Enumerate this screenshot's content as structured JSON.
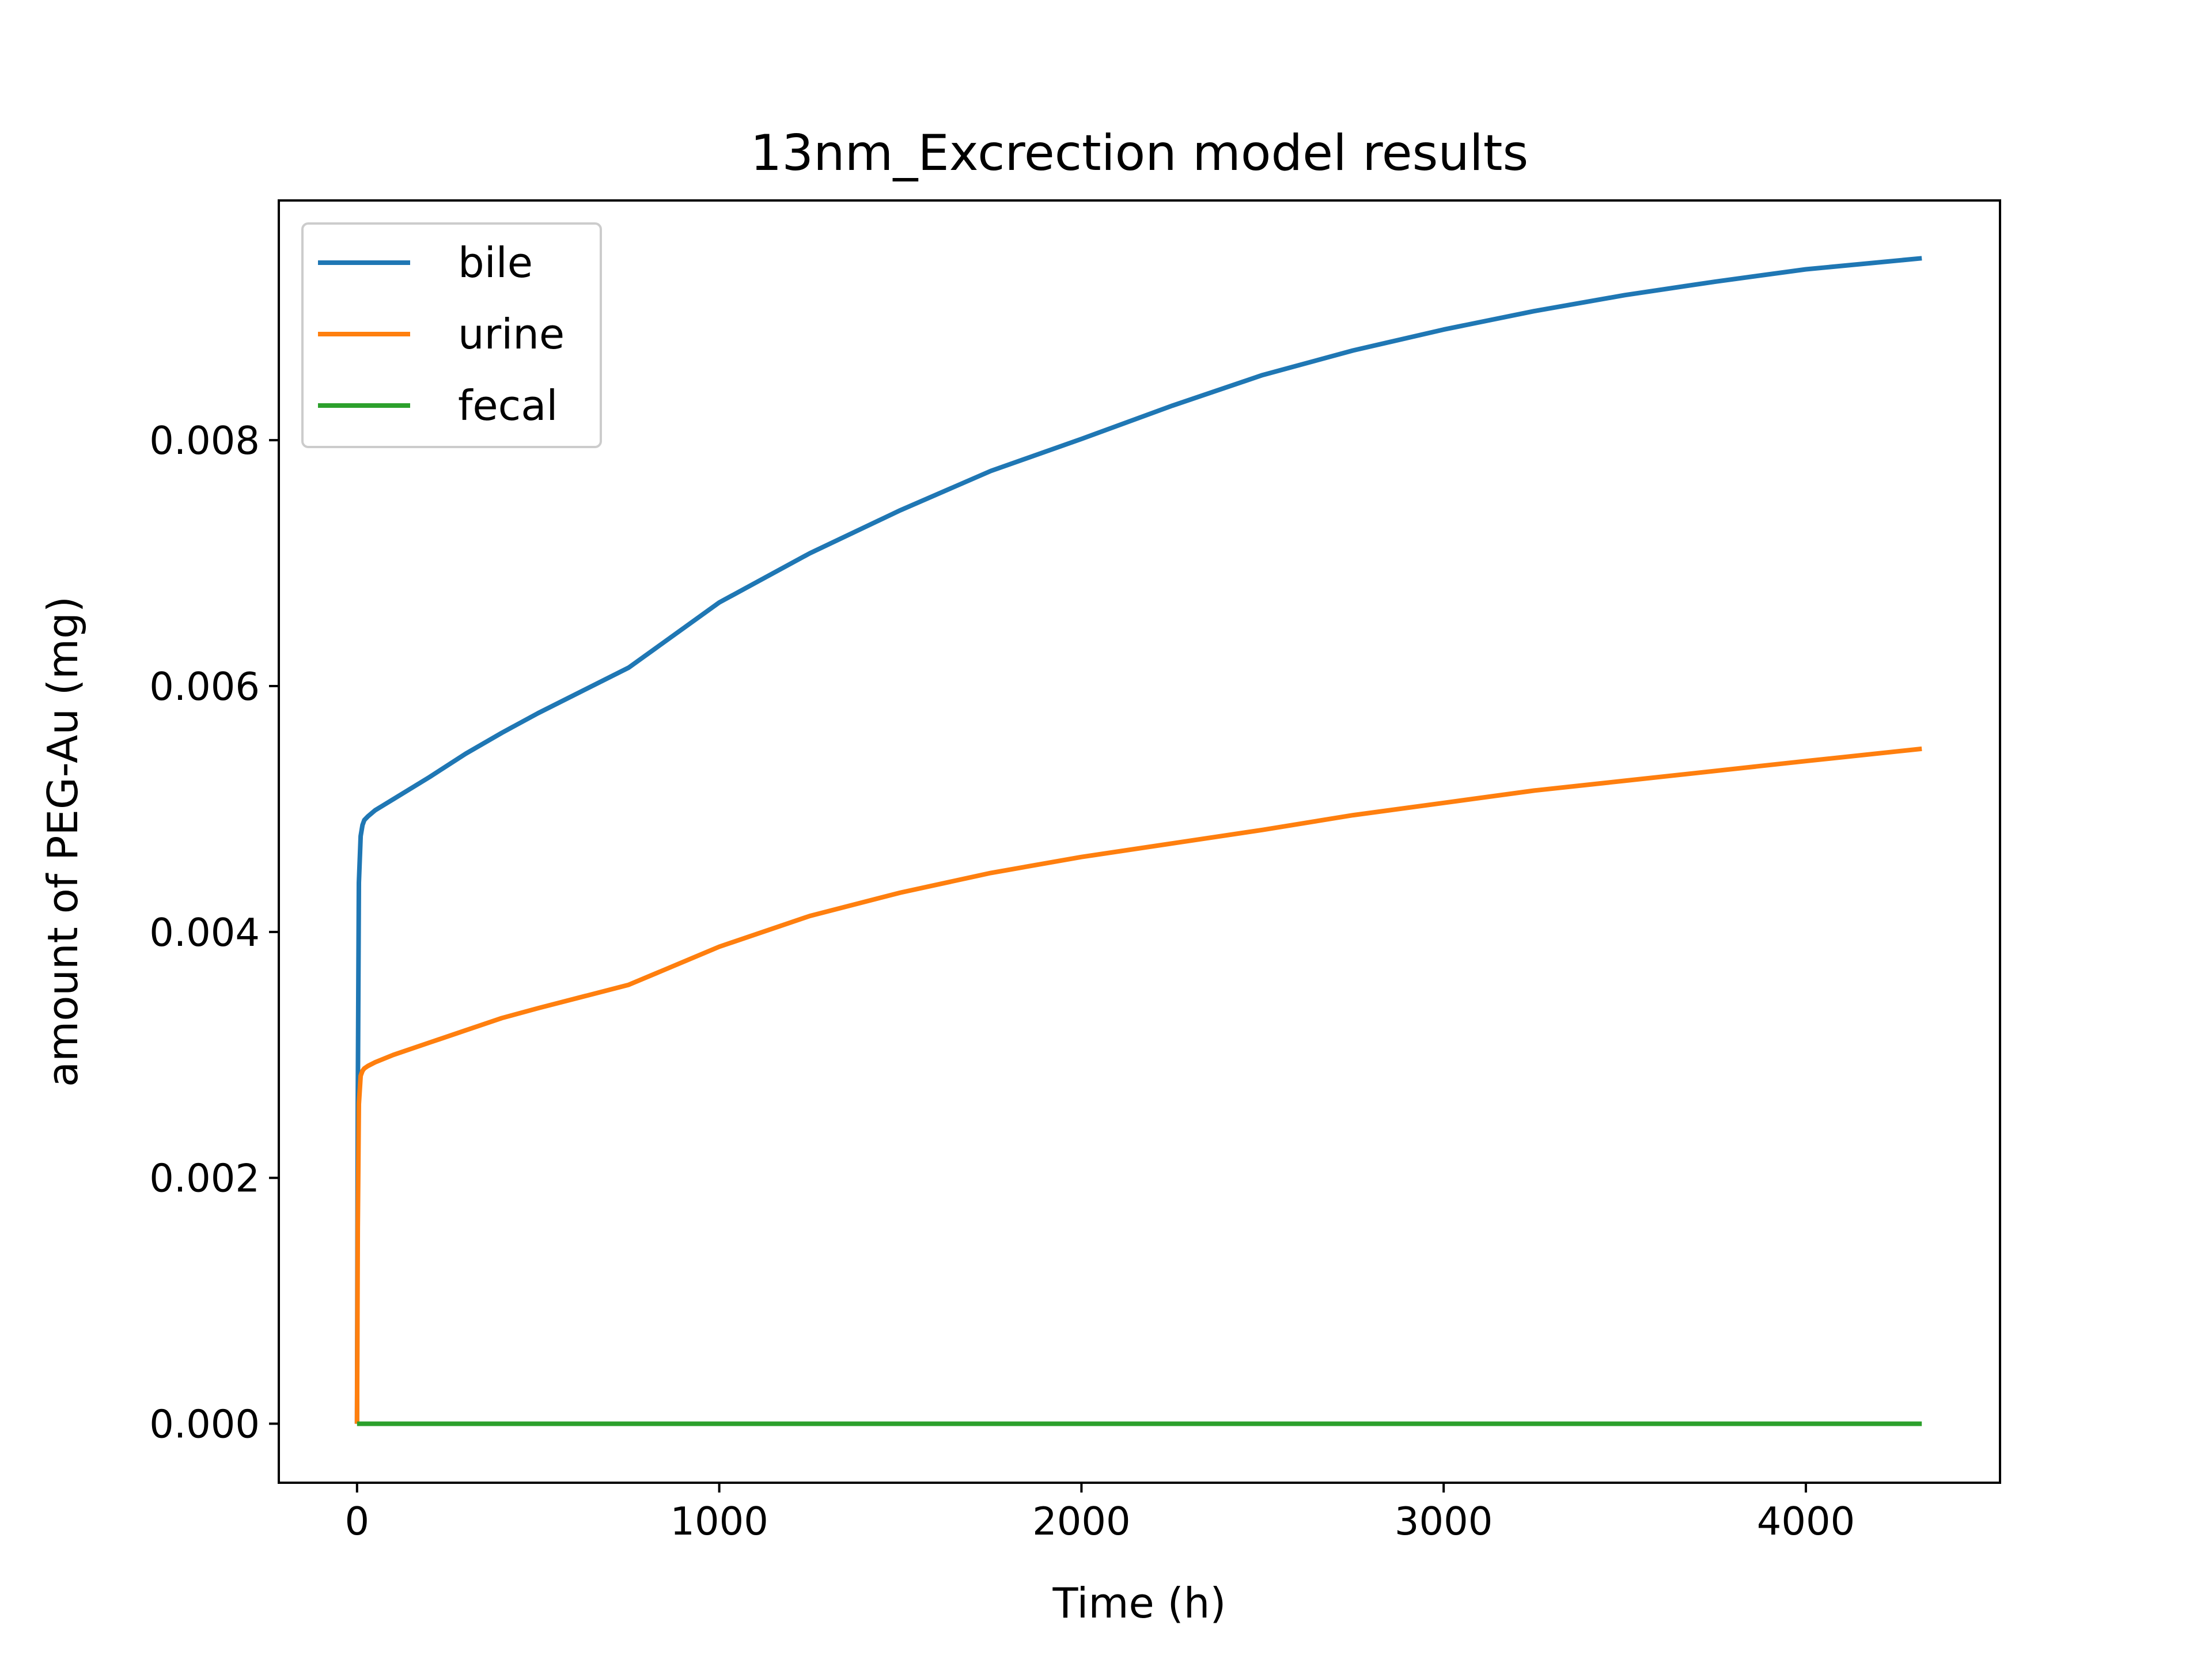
{
  "chart_data": {
    "type": "line",
    "title": "13nm_Excrection model results",
    "xlabel": "Time (h)",
    "ylabel": "amount of PEG-Au (mg)",
    "xlim": [
      -216,
      4536
    ],
    "ylim": [
      -0.00048,
      0.00995
    ],
    "xticks": [
      0,
      1000,
      2000,
      3000,
      4000
    ],
    "xtick_labels": [
      "0",
      "1000",
      "2000",
      "3000",
      "4000"
    ],
    "yticks": [
      0.0,
      0.002,
      0.004,
      0.006,
      0.008
    ],
    "ytick_labels": [
      "0.000",
      "0.002",
      "0.004",
      "0.006",
      "0.008"
    ],
    "grid": false,
    "legend_position": "top-left",
    "series": [
      {
        "name": "bile",
        "color": "#1f77b4",
        "x": [
          0,
          2,
          5,
          10,
          15,
          20,
          30,
          50,
          100,
          200,
          300,
          400,
          500,
          750,
          1000,
          1250,
          1500,
          1750,
          2000,
          2250,
          2500,
          2750,
          3000,
          3250,
          3500,
          3750,
          4000,
          4320
        ],
        "y": [
          0.0,
          0.0026,
          0.0044,
          0.00478,
          0.00487,
          0.00491,
          0.00494,
          0.00499,
          0.00508,
          0.00526,
          0.00545,
          0.00562,
          0.00578,
          0.00615,
          0.00668,
          0.00708,
          0.00743,
          0.00775,
          0.00801,
          0.00828,
          0.00853,
          0.00873,
          0.0089,
          0.00905,
          0.00918,
          0.00929,
          0.00939,
          0.00948
        ]
      },
      {
        "name": "urine",
        "color": "#ff7f0e",
        "x": [
          0,
          2,
          5,
          10,
          15,
          20,
          30,
          50,
          100,
          200,
          300,
          400,
          500,
          750,
          1000,
          1250,
          1500,
          1750,
          2000,
          2250,
          2500,
          2750,
          3000,
          3250,
          3500,
          3750,
          4000,
          4320
        ],
        "y": [
          0.0,
          0.0016,
          0.0026,
          0.00283,
          0.00287,
          0.00289,
          0.00291,
          0.00294,
          0.003,
          0.0031,
          0.0032,
          0.0033,
          0.00338,
          0.00357,
          0.00388,
          0.00413,
          0.00432,
          0.00448,
          0.00461,
          0.00472,
          0.00483,
          0.00495,
          0.00505,
          0.00515,
          0.00523,
          0.00531,
          0.00539,
          0.00549
        ]
      },
      {
        "name": "fecal",
        "color": "#2ca02c",
        "x": [
          0,
          4320
        ],
        "y": [
          0.0,
          0.0
        ]
      }
    ]
  }
}
